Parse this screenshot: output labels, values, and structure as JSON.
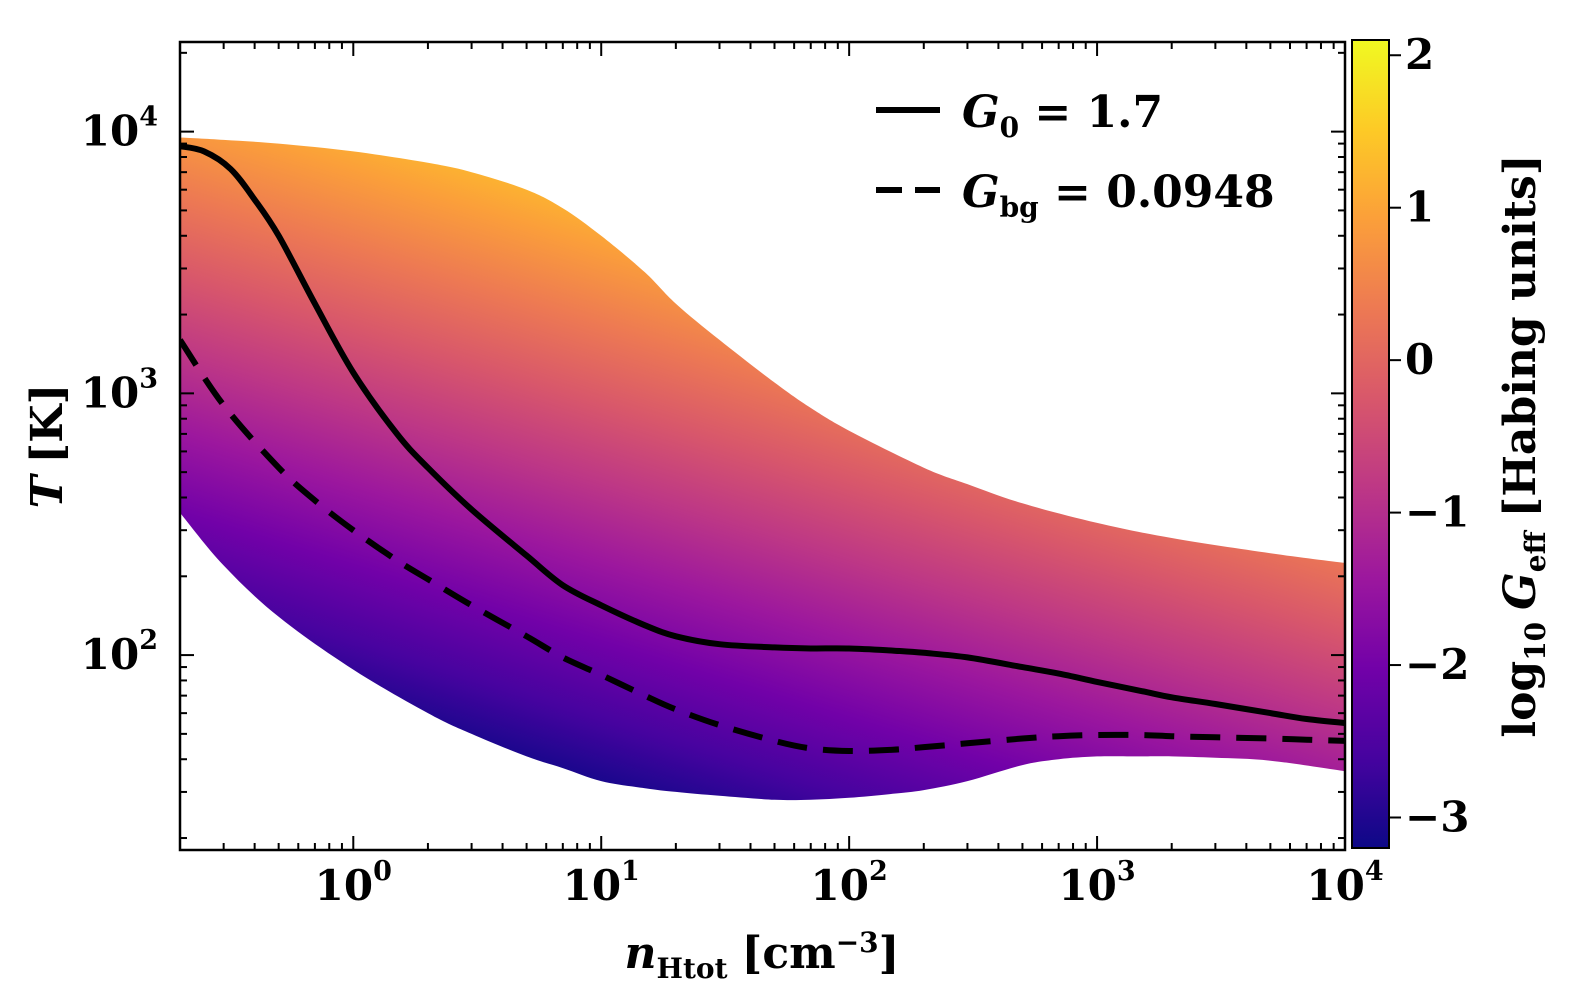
{
  "chart_data": {
    "type": "line",
    "xlabel": {
      "symbol": "n",
      "subscript": "Htot",
      "unit": "[cm",
      "unit_exp": "−3",
      "unit_close": "]"
    },
    "ylabel": {
      "symbol": "T",
      "unit": "[K]"
    },
    "xscale": "log",
    "yscale": "log",
    "xlim": [
      0.2,
      10000
    ],
    "ylim": [
      18,
      22000
    ],
    "x_ticks": [
      {
        "value": 1,
        "base": "10",
        "exp": "0"
      },
      {
        "value": 10,
        "base": "10",
        "exp": "1"
      },
      {
        "value": 100,
        "base": "10",
        "exp": "2"
      },
      {
        "value": 1000,
        "base": "10",
        "exp": "3"
      },
      {
        "value": 10000,
        "base": "10",
        "exp": "4"
      }
    ],
    "y_ticks": [
      {
        "value": 100,
        "base": "10",
        "exp": "2"
      },
      {
        "value": 1000,
        "base": "10",
        "exp": "3"
      },
      {
        "value": 10000,
        "base": "10",
        "exp": "4"
      }
    ],
    "series": [
      {
        "name": "G0 = 1.7",
        "legend": {
          "symbol": "G",
          "subscript": "0",
          "rest": " = 1.7"
        },
        "style": "solid",
        "color": "#000000",
        "x": [
          0.2,
          0.25,
          0.32,
          0.4,
          0.5,
          0.7,
          1,
          1.5,
          2,
          3,
          5,
          7,
          10,
          15,
          20,
          30,
          50,
          70,
          100,
          150,
          200,
          300,
          500,
          700,
          1000,
          1500,
          2000,
          3000,
          5000,
          7000,
          10000
        ],
        "y": [
          8800,
          8400,
          7200,
          5500,
          4000,
          2200,
          1200,
          700,
          520,
          360,
          240,
          185,
          155,
          130,
          118,
          110,
          107,
          106,
          106,
          104,
          102,
          98,
          90,
          85,
          79,
          73,
          69,
          65,
          60,
          57,
          55
        ]
      },
      {
        "name": "Gbg = 0.0948",
        "legend": {
          "symbol": "G",
          "subscript": "bg",
          "rest": " = 0.0948"
        },
        "style": "dashed",
        "color": "#000000",
        "x": [
          0.2,
          0.3,
          0.5,
          0.7,
          1,
          1.5,
          2,
          3,
          5,
          7,
          10,
          15,
          20,
          30,
          50,
          70,
          100,
          150,
          200,
          300,
          500,
          700,
          1000,
          1500,
          2000,
          3000,
          5000,
          7000,
          10000
        ],
        "y": [
          1600,
          900,
          520,
          390,
          300,
          230,
          195,
          155,
          118,
          98,
          84,
          70,
          62,
          54,
          47,
          44,
          43,
          43.5,
          44.5,
          46,
          48,
          49,
          49.5,
          49.5,
          49,
          48.5,
          48,
          47.5,
          47
        ]
      }
    ],
    "band": {
      "description": "family of curves colored by log10 G_eff",
      "upper_x": [
        0.2,
        0.3,
        0.5,
        1,
        2,
        3,
        5,
        7,
        10,
        15,
        20,
        30,
        50,
        70,
        100,
        200,
        300,
        500,
        1000,
        2000,
        5000,
        10000
      ],
      "upper_y": [
        9500,
        9300,
        9000,
        8400,
        7600,
        7000,
        6000,
        5100,
        4000,
        2900,
        2200,
        1600,
        1100,
        880,
        720,
        520,
        450,
        380,
        320,
        280,
        245,
        225
      ],
      "lower_x": [
        0.2,
        0.3,
        0.5,
        1,
        2,
        3,
        5,
        7,
        10,
        15,
        20,
        30,
        50,
        70,
        100,
        150,
        200,
        300,
        500,
        700,
        1000,
        1500,
        2000,
        3000,
        5000,
        10000
      ],
      "lower_y": [
        350,
        220,
        140,
        88,
        60,
        50,
        41,
        37,
        33,
        31,
        30,
        29,
        28,
        28,
        28.5,
        29.5,
        30.5,
        33,
        38,
        40,
        41,
        41,
        41,
        40.5,
        39.5,
        36
      ]
    },
    "colorbar": {
      "label": {
        "prefix": "log",
        "base_sub": "10",
        "symbol": "G",
        "subscript": "eff",
        "unit": "[Habing units]"
      },
      "range": [
        -3.2,
        2.1
      ],
      "ticks": [
        {
          "value": -3,
          "label": "−3"
        },
        {
          "value": -2,
          "label": "−2"
        },
        {
          "value": -1,
          "label": "−1"
        },
        {
          "value": 0,
          "label": "0"
        },
        {
          "value": 1,
          "label": "1"
        },
        {
          "value": 2,
          "label": "2"
        }
      ],
      "colormap": "plasma",
      "colors": [
        "#0d0887",
        "#46039f",
        "#7201a8",
        "#9c179e",
        "#bd3786",
        "#d8576b",
        "#ed7953",
        "#fb9f3a",
        "#fdca26",
        "#f0f921"
      ]
    },
    "legend_position": "top-right",
    "grid": false
  }
}
